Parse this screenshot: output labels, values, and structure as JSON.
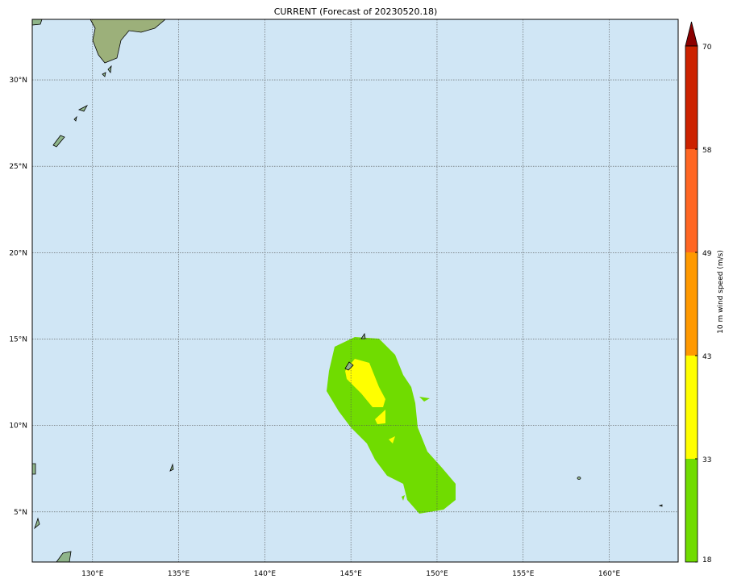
{
  "map": {
    "title": "CURRENT (Forecast of 20230520.18)",
    "xlim": [
      126.5,
      164
    ],
    "ylim": [
      2.1,
      33.5
    ],
    "xticks": [
      {
        "value": 130,
        "label": "130°E"
      },
      {
        "value": 135,
        "label": "135°E"
      },
      {
        "value": 140,
        "label": "140°E"
      },
      {
        "value": 145,
        "label": "145°E"
      },
      {
        "value": 150,
        "label": "150°E"
      },
      {
        "value": 155,
        "label": "155°E"
      },
      {
        "value": 160,
        "label": "160°E"
      }
    ],
    "yticks": [
      {
        "value": 5,
        "label": "5°N"
      },
      {
        "value": 10,
        "label": "10°N"
      },
      {
        "value": 15,
        "label": "15°N"
      },
      {
        "value": 20,
        "label": "20°N"
      },
      {
        "value": 25,
        "label": "25°N"
      },
      {
        "value": 30,
        "label": "30°N"
      }
    ],
    "grid": true
  },
  "colorbar": {
    "label": "10 m wind speed (m/s)",
    "ticks": [
      18,
      33,
      43,
      49,
      58,
      70
    ],
    "colors": [
      "#70dc00",
      "#ffff00",
      "#ff9900",
      "#ff6622",
      "#cc2200"
    ],
    "extend_color": "#8b0000"
  }
}
